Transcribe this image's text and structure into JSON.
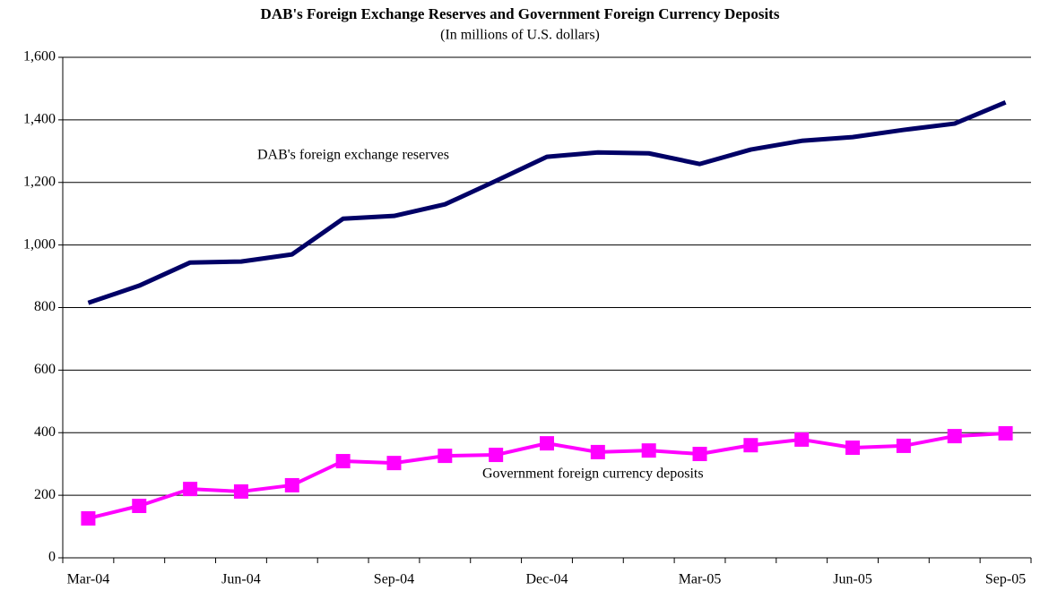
{
  "chart_data": {
    "type": "line",
    "title": "DAB's Foreign Exchange Reserves and Government Foreign Currency Deposits",
    "subtitle": "(In millions of U.S. dollars)",
    "categories": [
      "Mar-04",
      null,
      null,
      "Jun-04",
      null,
      null,
      "Sep-04",
      null,
      null,
      "Dec-04",
      null,
      null,
      "Mar-05",
      null,
      null,
      "Jun-05",
      null,
      null,
      "Sep-05"
    ],
    "series": [
      {
        "name": "DAB's foreign exchange reserves",
        "color": "#000066",
        "marker": "none",
        "values": [
          815,
          870,
          944,
          947,
          970,
          1084,
          1093,
          1130,
          1205,
          1282,
          1296,
          1293,
          1259,
          1305,
          1333,
          1345,
          1368,
          1388,
          1456
        ]
      },
      {
        "name": "Government foreign currency deposits",
        "color": "#ff00ff",
        "marker": "square",
        "values": [
          126,
          166,
          220,
          212,
          232,
          309,
          303,
          326,
          329,
          366,
          338,
          343,
          332,
          360,
          378,
          352,
          358,
          389,
          398
        ]
      }
    ],
    "ylim": [
      0,
      1600
    ],
    "yticks": [
      0,
      200,
      400,
      600,
      800,
      {
        "value": 1000,
        "label": "1,000"
      },
      {
        "value": 1200,
        "label": "1,200"
      },
      {
        "value": 1400,
        "label": "1,400"
      },
      {
        "value": 1600,
        "label": "1,600"
      }
    ],
    "grid": true
  }
}
